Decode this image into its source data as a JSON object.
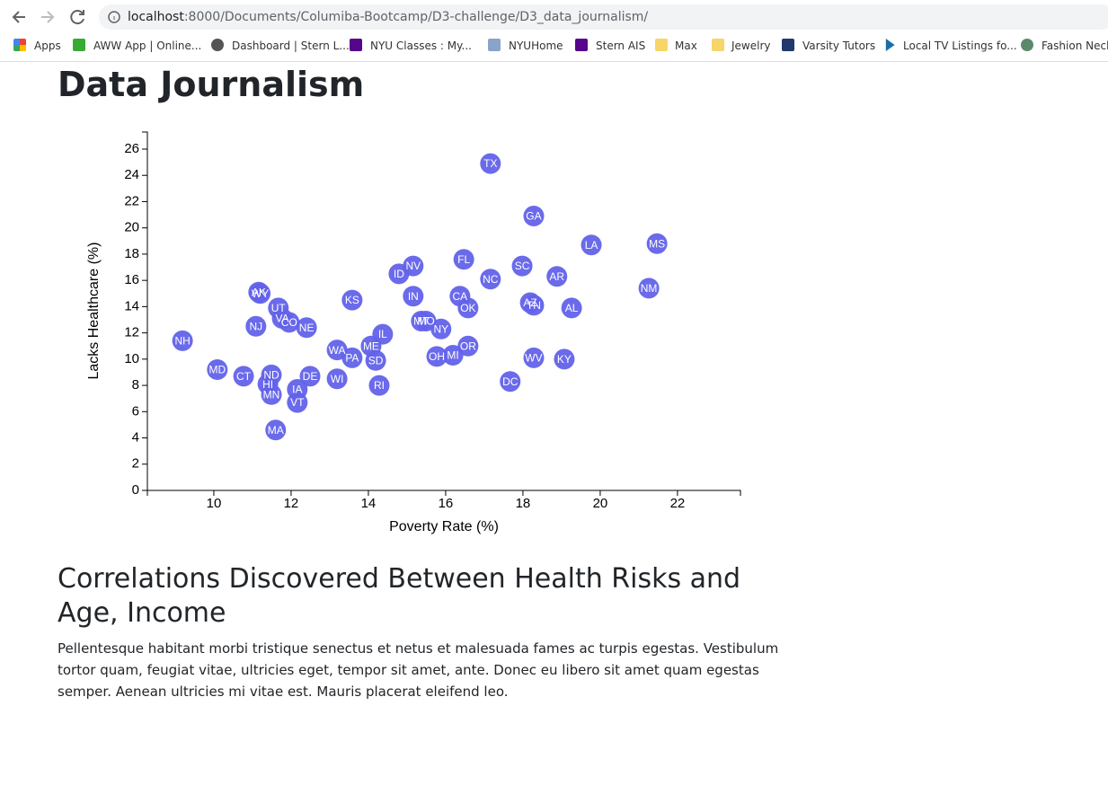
{
  "browser": {
    "url_host": "localhost",
    "url_path": ":8000/Documents/Columiba-Bootcamp/D3-challenge/D3_data_journalism/"
  },
  "bookmarks": [
    "Apps",
    "AWW App | Online...",
    "Dashboard | Stern L...",
    "NYU Classes : My...",
    "NYUHome",
    "Stern AIS",
    "Max",
    "Jewelry",
    "Varsity Tutors",
    "Local TV Listings fo...",
    "Fashion Neckl"
  ],
  "page": {
    "title": "Data Journalism",
    "heading": "Correlations Discovered Between Health Risks and Age, Income",
    "paragraph": "Pellentesque habitant morbi tristique senectus et netus et malesuada fames ac turpis egestas. Vestibulum tortor quam, feugiat vitae, ultricies eget, tempor sit amet, ante. Donec eu libero sit amet quam egestas semper. Aenean ultricies mi vitae est. Mauris placerat eleifend leo."
  },
  "chart_data": {
    "type": "scatter",
    "xlabel": "Poverty Rate (%)",
    "ylabel": "Lacks Healthcare (%)",
    "color": "#6262ea",
    "labels": [
      "TX",
      "GA",
      "LA",
      "MS",
      "FL",
      "NV",
      "SC",
      "ID",
      "AR",
      "NC",
      "NM",
      "AK",
      "WY",
      "IN",
      "CA",
      "KS",
      "AZ",
      "TN",
      "UT",
      "OK",
      "AL",
      "VA",
      "CO",
      "MT",
      "MO",
      "NJ",
      "NE",
      "NY",
      "IL",
      "NH",
      "ME",
      "OR",
      "WA",
      "PA",
      "OH",
      "MI",
      "SD",
      "WV",
      "KY",
      "MD",
      "CT",
      "ND",
      "DE",
      "WI",
      "DC",
      "RI",
      "HI",
      "IA",
      "MN",
      "VT",
      "MA"
    ],
    "x": [
      17.16,
      18.28,
      19.77,
      21.47,
      16.47,
      15.16,
      17.98,
      14.79,
      18.88,
      17.16,
      21.26,
      11.16,
      11.2,
      15.16,
      16.37,
      13.58,
      18.19,
      18.28,
      11.67,
      16.58,
      19.26,
      11.77,
      11.95,
      15.37,
      15.49,
      11.09,
      12.4,
      15.88,
      14.37,
      9.19,
      14.07,
      16.58,
      13.19,
      13.58,
      15.77,
      16.19,
      14.19,
      18.28,
      19.07,
      10.09,
      10.77,
      11.49,
      12.49,
      13.19,
      17.67,
      14.28,
      11.4,
      12.16,
      11.49,
      12.16,
      11.6
    ],
    "y": [
      24.9,
      20.9,
      18.7,
      18.8,
      17.6,
      17.1,
      17.1,
      16.5,
      16.3,
      16.1,
      15.4,
      15.1,
      15.0,
      14.8,
      14.8,
      14.5,
      14.3,
      14.1,
      13.9,
      13.9,
      13.9,
      13.1,
      12.8,
      12.9,
      12.9,
      12.5,
      12.4,
      12.3,
      11.9,
      11.4,
      11.0,
      11.0,
      10.7,
      10.1,
      10.2,
      10.3,
      9.9,
      10.1,
      10.0,
      9.2,
      8.7,
      8.8,
      8.7,
      8.5,
      8.3,
      8.0,
      8.1,
      7.7,
      7.3,
      6.7,
      4.6
    ],
    "xlim": [
      8.28,
      23.63
    ],
    "ylim": [
      0,
      27.3
    ],
    "xticks": [
      10,
      12,
      14,
      16,
      18,
      20,
      22
    ],
    "yticks": [
      0,
      2,
      4,
      6,
      8,
      10,
      12,
      14,
      16,
      18,
      20,
      22,
      24,
      26
    ]
  }
}
